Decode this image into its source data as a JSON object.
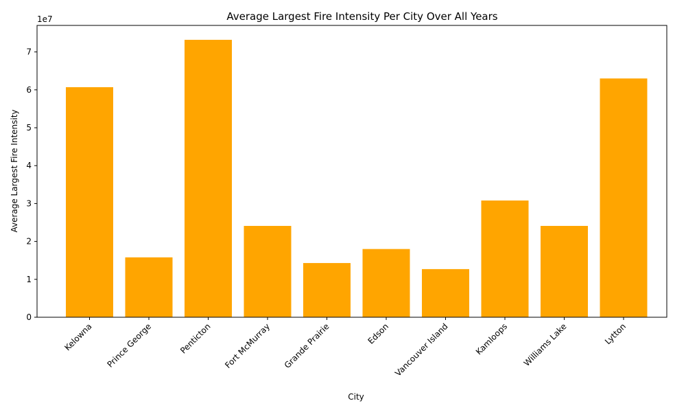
{
  "chart_data": {
    "type": "bar",
    "title": "Average Largest Fire Intensity Per City Over All Years",
    "xlabel": "City",
    "ylabel": "Average Largest Fire Intensity",
    "y_offset_text": "1e7",
    "categories": [
      "Kelowna",
      "Prince George",
      "Penticton",
      "Fort McMurray",
      "Grande Prairie",
      "Edson",
      "Vancouver Island",
      "Kamloops",
      "Williams Lake",
      "Lytton"
    ],
    "values": [
      60700000,
      15800000,
      73200000,
      24100000,
      14300000,
      18000000,
      12700000,
      30800000,
      24100000,
      63000000
    ],
    "ylim": [
      0,
      77000000
    ],
    "y_tick_values": [
      0,
      10000000,
      20000000,
      30000000,
      40000000,
      50000000,
      60000000,
      70000000
    ],
    "y_tick_labels": [
      "0",
      "1",
      "2",
      "3",
      "4",
      "5",
      "6",
      "7"
    ],
    "grid": false,
    "bar_color": "#ffa500"
  }
}
